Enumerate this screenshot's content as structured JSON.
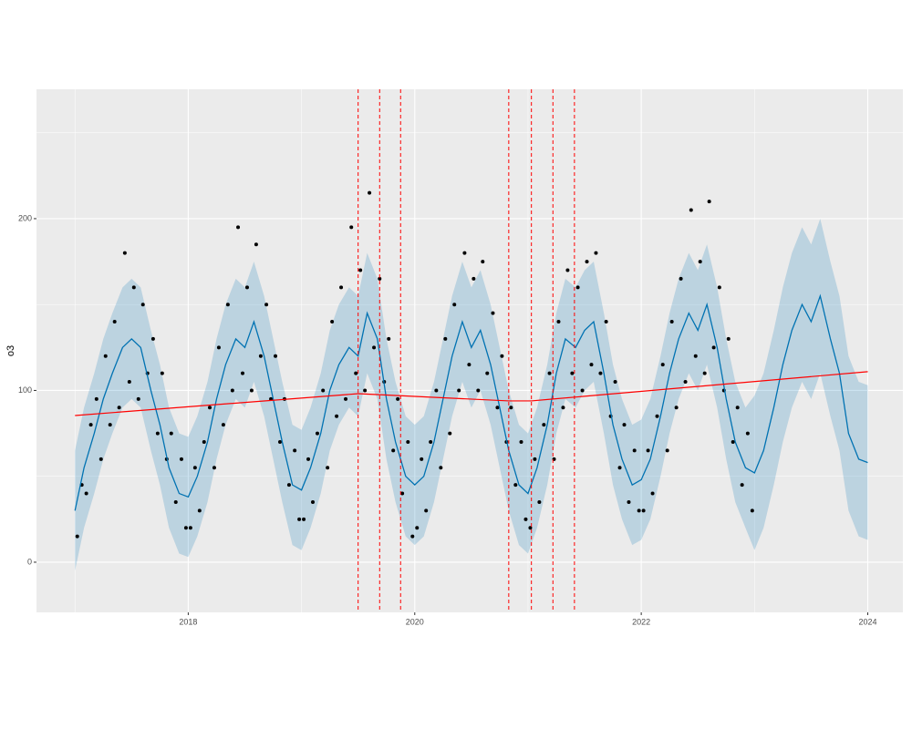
{
  "chart_data": {
    "type": "scatter",
    "y_label": "o3",
    "xlim": [
      2016.66,
      2024.31
    ],
    "ylim": [
      -29.2,
      275.3
    ],
    "xticks": [
      2018,
      2020,
      2022,
      2024
    ],
    "yticks": [
      0,
      100,
      200
    ],
    "x_minor_ticks": [
      2017,
      2019,
      2021,
      2023
    ],
    "y_minor_ticks": [
      50,
      150,
      250
    ],
    "grid": true,
    "points": {
      "color": "#000000",
      "x": [
        2017.02,
        2017.06,
        2017.1,
        2017.14,
        2017.19,
        2017.23,
        2017.27,
        2017.31,
        2017.35,
        2017.39,
        2017.44,
        2017.48,
        2017.52,
        2017.56,
        2017.6,
        2017.64,
        2017.69,
        2017.73,
        2017.77,
        2017.81,
        2017.85,
        2017.89,
        2017.94,
        2017.98,
        2018.02,
        2018.06,
        2018.1,
        2018.14,
        2018.19,
        2018.23,
        2018.27,
        2018.31,
        2018.35,
        2018.39,
        2018.44,
        2018.48,
        2018.52,
        2018.56,
        2018.6,
        2018.64,
        2018.69,
        2018.73,
        2018.77,
        2018.81,
        2018.85,
        2018.89,
        2018.94,
        2018.98,
        2019.02,
        2019.06,
        2019.1,
        2019.14,
        2019.19,
        2019.23,
        2019.27,
        2019.31,
        2019.35,
        2019.39,
        2019.44,
        2019.48,
        2019.52,
        2019.56,
        2019.6,
        2019.64,
        2019.69,
        2019.73,
        2019.77,
        2019.81,
        2019.85,
        2019.89,
        2019.94,
        2019.98,
        2020.02,
        2020.06,
        2020.1,
        2020.14,
        2020.19,
        2020.23,
        2020.27,
        2020.31,
        2020.35,
        2020.39,
        2020.44,
        2020.48,
        2020.52,
        2020.56,
        2020.6,
        2020.64,
        2020.69,
        2020.73,
        2020.77,
        2020.81,
        2020.85,
        2020.89,
        2020.94,
        2020.98,
        2021.02,
        2021.06,
        2021.1,
        2021.14,
        2021.19,
        2021.23,
        2021.27,
        2021.31,
        2021.35,
        2021.39,
        2021.44,
        2021.48,
        2021.52,
        2021.56,
        2021.6,
        2021.64,
        2021.69,
        2021.73,
        2021.77,
        2021.81,
        2021.85,
        2021.89,
        2021.94,
        2021.98,
        2022.02,
        2022.06,
        2022.1,
        2022.14,
        2022.19,
        2022.23,
        2022.27,
        2022.31,
        2022.35,
        2022.39,
        2022.44,
        2022.48,
        2022.52,
        2022.56,
        2022.6,
        2022.64,
        2022.69,
        2022.73,
        2022.77,
        2022.81,
        2022.85,
        2022.89,
        2022.94,
        2022.98
      ],
      "values": [
        15,
        45,
        40,
        80,
        95,
        60,
        120,
        80,
        140,
        90,
        180,
        105,
        160,
        95,
        150,
        110,
        130,
        75,
        110,
        60,
        75,
        35,
        60,
        20,
        20,
        55,
        30,
        70,
        90,
        55,
        125,
        80,
        150,
        100,
        195,
        110,
        160,
        100,
        185,
        120,
        150,
        95,
        120,
        70,
        95,
        45,
        65,
        25,
        25,
        60,
        35,
        75,
        100,
        55,
        140,
        85,
        160,
        95,
        195,
        110,
        170,
        100,
        215,
        125,
        165,
        105,
        130,
        65,
        95,
        40,
        70,
        15,
        20,
        60,
        30,
        70,
        100,
        55,
        130,
        75,
        150,
        100,
        180,
        115,
        165,
        100,
        175,
        110,
        145,
        90,
        120,
        70,
        90,
        45,
        70,
        25,
        20,
        60,
        35,
        80,
        110,
        60,
        140,
        90,
        170,
        110,
        160,
        100,
        175,
        115,
        180,
        110,
        140,
        85,
        105,
        55,
        80,
        35,
        65,
        30,
        30,
        65,
        40,
        85,
        115,
        65,
        140,
        90,
        165,
        105,
        205,
        120,
        175,
        110,
        210,
        125,
        160,
        100,
        130,
        70,
        90,
        45,
        75,
        30
      ]
    },
    "forecast": {
      "color": "#0072B2",
      "x": [
        2017.0,
        2017.08,
        2017.17,
        2017.25,
        2017.33,
        2017.42,
        2017.5,
        2017.58,
        2017.67,
        2017.75,
        2017.83,
        2017.92,
        2018.0,
        2018.08,
        2018.17,
        2018.25,
        2018.33,
        2018.42,
        2018.5,
        2018.58,
        2018.67,
        2018.75,
        2018.83,
        2018.92,
        2019.0,
        2019.08,
        2019.17,
        2019.25,
        2019.33,
        2019.42,
        2019.5,
        2019.58,
        2019.67,
        2019.75,
        2019.83,
        2019.92,
        2020.0,
        2020.08,
        2020.17,
        2020.25,
        2020.33,
        2020.42,
        2020.5,
        2020.58,
        2020.67,
        2020.75,
        2020.83,
        2020.92,
        2021.0,
        2021.08,
        2021.17,
        2021.25,
        2021.33,
        2021.42,
        2021.5,
        2021.58,
        2021.67,
        2021.75,
        2021.83,
        2021.92,
        2022.0,
        2022.08,
        2022.17,
        2022.25,
        2022.33,
        2022.42,
        2022.5,
        2022.58,
        2022.67,
        2022.75,
        2022.83,
        2022.92,
        2023.0,
        2023.08,
        2023.17,
        2023.25,
        2023.33,
        2023.42,
        2023.5,
        2023.58,
        2023.67,
        2023.75,
        2023.83,
        2023.92,
        2024.0
      ],
      "values": [
        30,
        55,
        75,
        95,
        110,
        125,
        130,
        125,
        100,
        80,
        55,
        40,
        38,
        50,
        70,
        95,
        115,
        130,
        125,
        140,
        120,
        95,
        70,
        45,
        42,
        55,
        75,
        100,
        115,
        125,
        120,
        145,
        130,
        95,
        70,
        50,
        45,
        50,
        70,
        95,
        120,
        140,
        125,
        135,
        115,
        90,
        65,
        45,
        40,
        55,
        80,
        110,
        130,
        125,
        135,
        140,
        110,
        80,
        60,
        45,
        48,
        60,
        85,
        110,
        130,
        145,
        135,
        150,
        125,
        95,
        70,
        55,
        52,
        65,
        90,
        115,
        135,
        150,
        140,
        155,
        130,
        110,
        75,
        60,
        58
      ],
      "lower": [
        -5,
        20,
        40,
        60,
        75,
        90,
        95,
        90,
        65,
        45,
        20,
        5,
        3,
        15,
        35,
        60,
        80,
        95,
        90,
        105,
        85,
        60,
        35,
        10,
        7,
        20,
        40,
        65,
        80,
        90,
        85,
        110,
        95,
        60,
        35,
        15,
        10,
        15,
        35,
        60,
        85,
        105,
        90,
        100,
        80,
        55,
        30,
        10,
        5,
        20,
        45,
        75,
        95,
        90,
        100,
        105,
        75,
        45,
        25,
        10,
        13,
        25,
        50,
        75,
        95,
        110,
        100,
        115,
        90,
        60,
        35,
        20,
        7,
        20,
        45,
        70,
        90,
        105,
        95,
        110,
        85,
        65,
        30,
        15,
        13
      ],
      "upper": [
        65,
        90,
        110,
        130,
        145,
        160,
        165,
        160,
        135,
        115,
        90,
        75,
        73,
        85,
        105,
        130,
        150,
        165,
        160,
        175,
        155,
        130,
        105,
        80,
        77,
        90,
        110,
        135,
        150,
        160,
        155,
        180,
        165,
        130,
        105,
        85,
        80,
        85,
        105,
        130,
        155,
        175,
        160,
        170,
        150,
        125,
        100,
        80,
        75,
        90,
        115,
        145,
        165,
        160,
        170,
        175,
        145,
        115,
        95,
        80,
        83,
        95,
        120,
        145,
        165,
        180,
        170,
        185,
        160,
        130,
        105,
        90,
        97,
        110,
        135,
        160,
        180,
        195,
        185,
        200,
        175,
        155,
        120,
        105,
        103
      ]
    },
    "trend": {
      "color": "#ff0000",
      "x": [
        2017.0,
        2019.5,
        2020.83,
        2021.03,
        2021.22,
        2024.0
      ],
      "values": [
        85.4,
        98.1,
        93.9,
        93.9,
        95.0,
        110.9
      ]
    },
    "changepoints": {
      "color": "#ff0000",
      "x": [
        2019.5,
        2019.69,
        2019.875,
        2020.83,
        2021.03,
        2021.22,
        2021.41
      ]
    }
  }
}
